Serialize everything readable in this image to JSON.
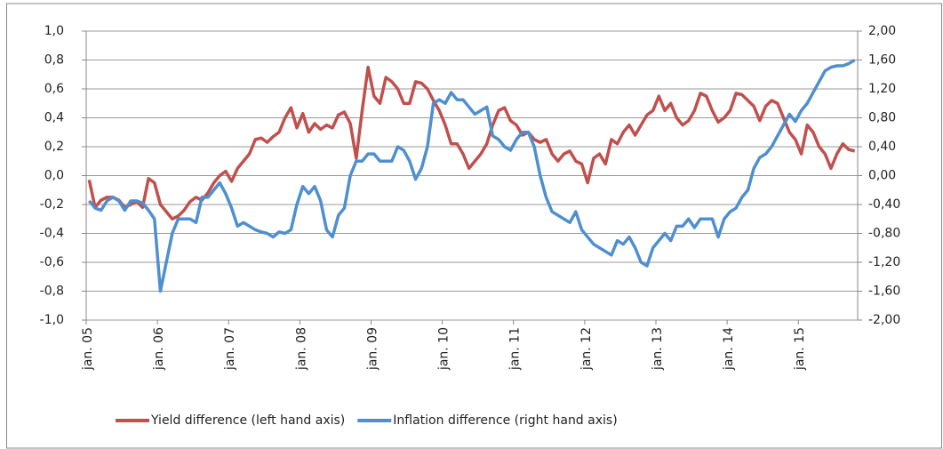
{
  "chart_data": {
    "type": "line",
    "categories": [
      "jan. 05",
      null,
      null,
      null,
      null,
      null,
      null,
      null,
      null,
      null,
      null,
      null,
      "jan. 06",
      null,
      null,
      null,
      null,
      null,
      null,
      null,
      null,
      null,
      null,
      null,
      "jan. 07",
      null,
      null,
      null,
      null,
      null,
      null,
      null,
      null,
      null,
      null,
      null,
      "jan. 08",
      null,
      null,
      null,
      null,
      null,
      null,
      null,
      null,
      null,
      null,
      null,
      "jan. 09",
      null,
      null,
      null,
      null,
      null,
      null,
      null,
      null,
      null,
      null,
      null,
      "jan. 10",
      null,
      null,
      null,
      null,
      null,
      null,
      null,
      null,
      null,
      null,
      null,
      "jan. 11",
      null,
      null,
      null,
      null,
      null,
      null,
      null,
      null,
      null,
      null,
      null,
      "jan. 12",
      null,
      null,
      null,
      null,
      null,
      null,
      null,
      null,
      null,
      null,
      null,
      "jan. 13",
      null,
      null,
      null,
      null,
      null,
      null,
      null,
      null,
      null,
      null,
      null,
      "jan. 14",
      null,
      null,
      null,
      null,
      null,
      null,
      null,
      null,
      null,
      null,
      null,
      "jan. 15",
      null,
      null,
      null,
      null,
      null,
      null,
      null,
      null,
      null
    ],
    "series": [
      {
        "name": "Yield difference (left hand axis)",
        "color": "#c0504d",
        "axis": "y",
        "values": [
          -0.03,
          -0.22,
          -0.17,
          -0.15,
          -0.15,
          -0.17,
          -0.22,
          -0.2,
          -0.18,
          -0.22,
          -0.02,
          -0.05,
          -0.2,
          -0.25,
          -0.3,
          -0.28,
          -0.24,
          -0.18,
          -0.15,
          -0.17,
          -0.12,
          -0.05,
          0.0,
          0.03,
          -0.04,
          0.05,
          0.1,
          0.15,
          0.25,
          0.26,
          0.23,
          0.27,
          0.3,
          0.4,
          0.47,
          0.33,
          0.43,
          0.3,
          0.36,
          0.32,
          0.35,
          0.33,
          0.42,
          0.44,
          0.36,
          0.12,
          0.45,
          0.75,
          0.55,
          0.5,
          0.68,
          0.65,
          0.6,
          0.5,
          0.5,
          0.65,
          0.64,
          0.6,
          0.52,
          0.45,
          0.35,
          0.22,
          0.22,
          0.15,
          0.05,
          0.1,
          0.15,
          0.22,
          0.35,
          0.45,
          0.47,
          0.38,
          0.35,
          0.28,
          0.3,
          0.25,
          0.23,
          0.25,
          0.15,
          0.1,
          0.15,
          0.17,
          0.1,
          0.08,
          -0.05,
          0.12,
          0.15,
          0.08,
          0.25,
          0.22,
          0.3,
          0.35,
          0.28,
          0.35,
          0.42,
          0.45,
          0.55,
          0.45,
          0.5,
          0.4,
          0.35,
          0.38,
          0.45,
          0.57,
          0.55,
          0.45,
          0.37,
          0.4,
          0.45,
          0.57,
          0.56,
          0.52,
          0.48,
          0.38,
          0.48,
          0.52,
          0.5,
          0.4,
          0.3,
          0.25,
          0.15,
          0.35,
          0.3,
          0.2,
          0.15,
          0.05,
          0.15,
          0.22,
          0.18,
          0.17
        ]
      },
      {
        "name": "Inflation difference (right hand axis)",
        "color": "#4f8fd0",
        "axis": "y2",
        "values": [
          -0.35,
          -0.45,
          -0.48,
          -0.35,
          -0.3,
          -0.35,
          -0.48,
          -0.35,
          -0.35,
          -0.38,
          -0.48,
          -0.6,
          -1.6,
          -1.2,
          -0.8,
          -0.6,
          -0.6,
          -0.6,
          -0.65,
          -0.3,
          -0.3,
          -0.2,
          -0.1,
          -0.25,
          -0.45,
          -0.7,
          -0.65,
          -0.7,
          -0.75,
          -0.78,
          -0.8,
          -0.85,
          -0.78,
          -0.8,
          -0.75,
          -0.4,
          -0.15,
          -0.25,
          -0.15,
          -0.35,
          -0.75,
          -0.85,
          -0.55,
          -0.45,
          0.0,
          0.2,
          0.2,
          0.3,
          0.3,
          0.2,
          0.2,
          0.2,
          0.4,
          0.35,
          0.2,
          -0.05,
          0.1,
          0.4,
          1.0,
          1.05,
          1.0,
          1.15,
          1.05,
          1.05,
          0.95,
          0.85,
          0.9,
          0.95,
          0.55,
          0.5,
          0.4,
          0.35,
          0.5,
          0.6,
          0.6,
          0.4,
          0.0,
          -0.3,
          -0.5,
          -0.55,
          -0.6,
          -0.65,
          -0.5,
          -0.75,
          -0.85,
          -0.95,
          -1.0,
          -1.05,
          -1.1,
          -0.9,
          -0.95,
          -0.85,
          -1.0,
          -1.2,
          -1.25,
          -1.0,
          -0.9,
          -0.8,
          -0.9,
          -0.7,
          -0.7,
          -0.6,
          -0.72,
          -0.6,
          -0.6,
          -0.6,
          -0.85,
          -0.6,
          -0.5,
          -0.45,
          -0.3,
          -0.2,
          0.1,
          0.25,
          0.3,
          0.4,
          0.55,
          0.7,
          0.85,
          0.75,
          0.9,
          1.0,
          1.15,
          1.3,
          1.45,
          1.5,
          1.52,
          1.52,
          1.55,
          1.6
        ]
      }
    ],
    "ylim": [
      -1,
      1
    ],
    "yticks": [
      {
        "value": -1,
        "label": "-1,0"
      },
      {
        "value": -0.8,
        "label": "-0,8"
      },
      {
        "value": -0.6,
        "label": "-0,6"
      },
      {
        "value": -0.4,
        "label": "-0,4"
      },
      {
        "value": -0.2,
        "label": "-0,2"
      },
      {
        "value": 0,
        "label": "0,0"
      },
      {
        "value": 0.2,
        "label": "0,2"
      },
      {
        "value": 0.4,
        "label": "0,4"
      },
      {
        "value": 0.6,
        "label": "0,6"
      },
      {
        "value": 0.8,
        "label": "0,8"
      },
      {
        "value": 1,
        "label": "1,0"
      }
    ],
    "y2lim": [
      -2,
      2
    ],
    "y2ticks": [
      {
        "value": -2,
        "label": "-2,00"
      },
      {
        "value": -1.6,
        "label": "-1,60"
      },
      {
        "value": -1.2,
        "label": "-1,20"
      },
      {
        "value": -0.8,
        "label": "-0,80"
      },
      {
        "value": -0.4,
        "label": "-0,40"
      },
      {
        "value": 0,
        "label": "0,00"
      },
      {
        "value": 0.4,
        "label": "0,40"
      },
      {
        "value": 0.8,
        "label": "0,80"
      },
      {
        "value": 1.2,
        "label": "1,20"
      },
      {
        "value": 1.6,
        "label": "1,60"
      },
      {
        "value": 2,
        "label": "2,00"
      }
    ],
    "grid": true,
    "legend": "bottom"
  }
}
